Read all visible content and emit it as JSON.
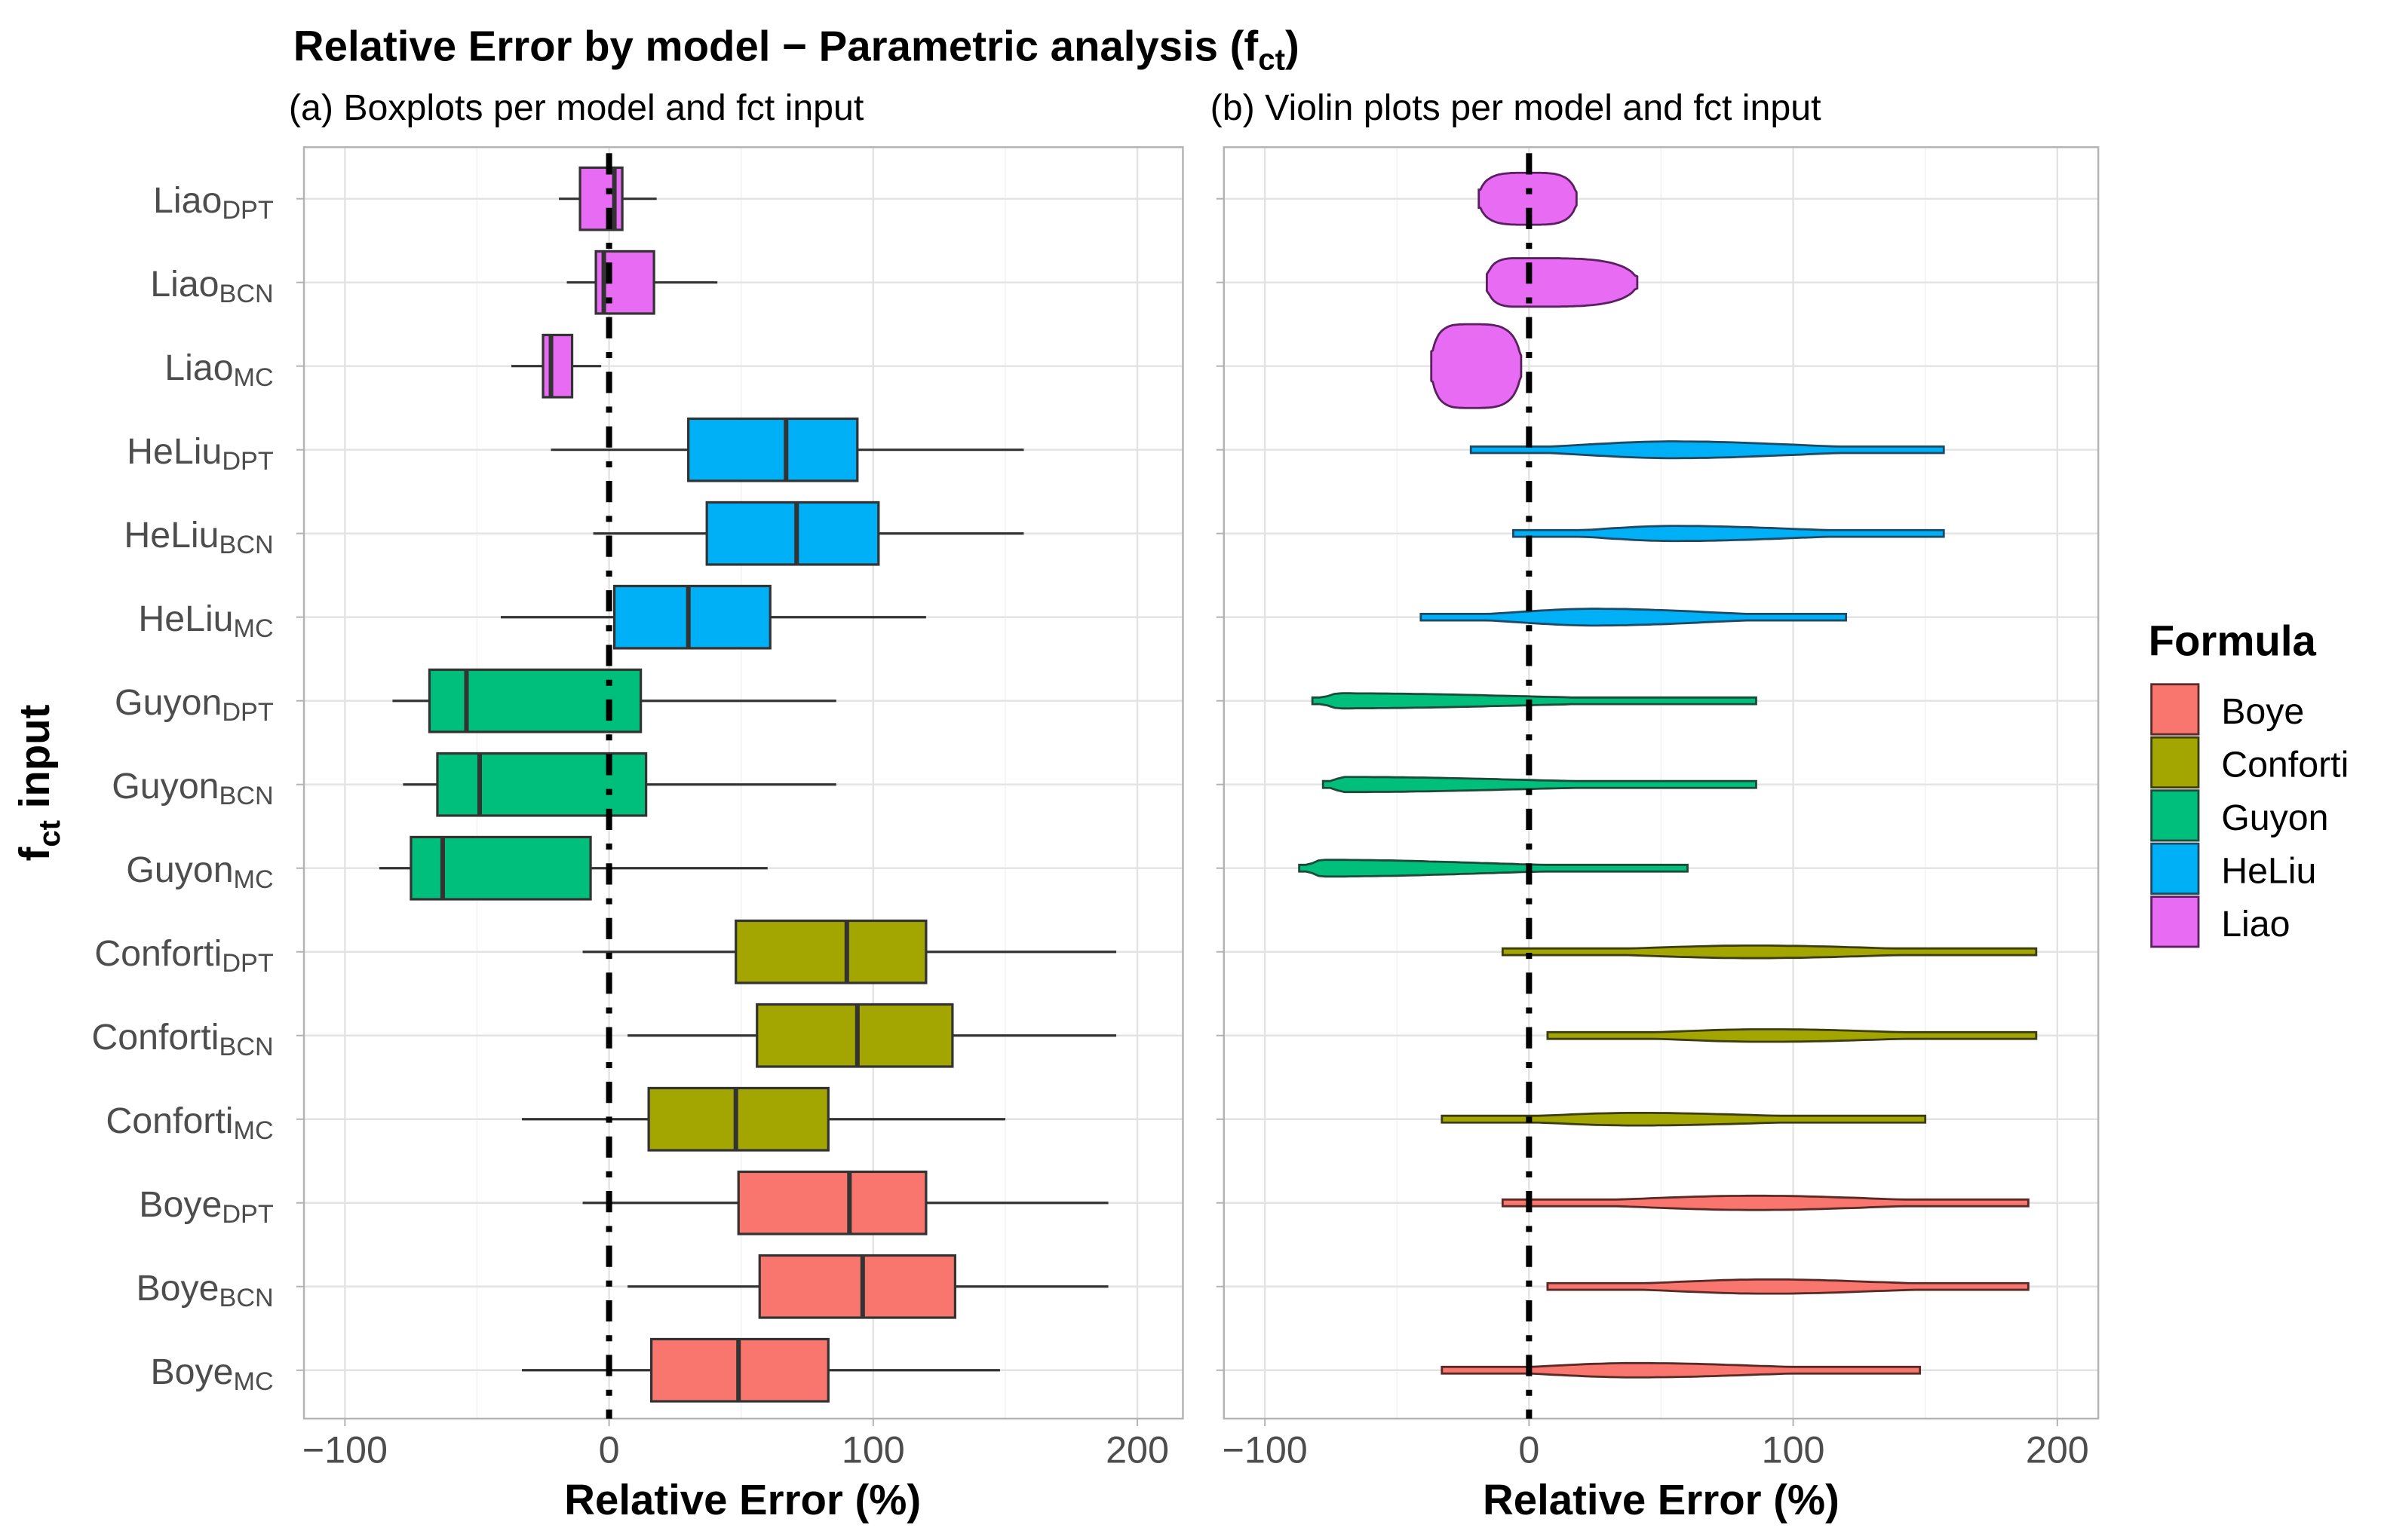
{
  "chart_data": {
    "type": "boxplot+violin",
    "title": "Relative Error by model − Parametric analysis (f",
    "title_sub": "ct",
    "title_end": ")",
    "ylabel": "f",
    "ylabel_sub": "ct",
    "ylabel_end": " input",
    "xlim": [
      -115,
      215
    ],
    "x_ticks": [
      -100,
      0,
      100,
      200
    ],
    "x_tick_labels": [
      "−100",
      "0",
      "100",
      "200"
    ],
    "reference_line": 0,
    "grid": true,
    "legend": {
      "title": "Formula",
      "placement": "right",
      "entries": [
        {
          "label": "Boye",
          "color": "#F8766D"
        },
        {
          "label": "Conforti",
          "color": "#A3A500"
        },
        {
          "label": "Guyon",
          "color": "#00BF7D"
        },
        {
          "label": "HeLiu",
          "color": "#00B0F6"
        },
        {
          "label": "Liao",
          "color": "#E76BF3"
        }
      ]
    },
    "panels": [
      {
        "subtitle": "(a) Boxplots per model and fct input",
        "type": "boxplot",
        "xlabel": "Relative Error (%)"
      },
      {
        "subtitle": "(b) Violin plots per model and fct input",
        "type": "violin",
        "xlabel": "Relative Error (%)"
      }
    ],
    "categories": [
      {
        "base": "Liao",
        "sub": "DPT",
        "formula": "Liao",
        "whisker_low": -19,
        "q1": -11,
        "median": 2,
        "q3": 5,
        "whisker_high": 18,
        "mode": 0,
        "density_width": 0.62
      },
      {
        "base": "Liao",
        "sub": "BCN",
        "formula": "Liao",
        "whisker_low": -16,
        "q1": -5,
        "median": -2,
        "q3": 17,
        "whisker_high": 41,
        "mode": -2,
        "density_width": 0.58
      },
      {
        "base": "Liao",
        "sub": "MC",
        "formula": "Liao",
        "whisker_low": -37,
        "q1": -25,
        "median": -22,
        "q3": -14,
        "whisker_high": -3,
        "mode": -22,
        "density_width": 1.0
      },
      {
        "base": "HeLiu",
        "sub": "DPT",
        "formula": "HeLiu",
        "whisker_low": -22,
        "q1": 30,
        "median": 67,
        "q3": 94,
        "whisker_high": 157,
        "mode": 55,
        "density_width": 0.2
      },
      {
        "base": "HeLiu",
        "sub": "BCN",
        "formula": "HeLiu",
        "whisker_low": -6,
        "q1": 37,
        "median": 71,
        "q3": 102,
        "whisker_high": 157,
        "mode": 55,
        "density_width": 0.18
      },
      {
        "base": "HeLiu",
        "sub": "MC",
        "formula": "HeLiu",
        "whisker_low": -41,
        "q1": 2,
        "median": 30,
        "q3": 61,
        "whisker_high": 120,
        "mode": 25,
        "density_width": 0.2
      },
      {
        "base": "Guyon",
        "sub": "DPT",
        "formula": "Guyon",
        "whisker_low": -82,
        "q1": -68,
        "median": -54,
        "q3": 12,
        "whisker_high": 86,
        "mode": -72,
        "density_width": 0.18
      },
      {
        "base": "Guyon",
        "sub": "BCN",
        "formula": "Guyon",
        "whisker_low": -78,
        "q1": -65,
        "median": -49,
        "q3": 14,
        "whisker_high": 86,
        "mode": -70,
        "density_width": 0.18
      },
      {
        "base": "Guyon",
        "sub": "MC",
        "formula": "Guyon",
        "whisker_low": -87,
        "q1": -75,
        "median": -63,
        "q3": -7,
        "whisker_high": 60,
        "mode": -78,
        "density_width": 0.2
      },
      {
        "base": "Conforti",
        "sub": "DPT",
        "formula": "Conforti",
        "whisker_low": -10,
        "q1": 48,
        "median": 90,
        "q3": 120,
        "whisker_high": 192,
        "mode": 85,
        "density_width": 0.15
      },
      {
        "base": "Conforti",
        "sub": "BCN",
        "formula": "Conforti",
        "whisker_low": 7,
        "q1": 56,
        "median": 94,
        "q3": 130,
        "whisker_high": 192,
        "mode": 90,
        "density_width": 0.15
      },
      {
        "base": "Conforti",
        "sub": "MC",
        "formula": "Conforti",
        "whisker_low": -33,
        "q1": 15,
        "median": 48,
        "q3": 83,
        "whisker_high": 150,
        "mode": 40,
        "density_width": 0.15
      },
      {
        "base": "Boye",
        "sub": "DPT",
        "formula": "Boye",
        "whisker_low": -10,
        "q1": 49,
        "median": 91,
        "q3": 120,
        "whisker_high": 189,
        "mode": 85,
        "density_width": 0.17
      },
      {
        "base": "Boye",
        "sub": "BCN",
        "formula": "Boye",
        "whisker_low": 7,
        "q1": 57,
        "median": 96,
        "q3": 131,
        "whisker_high": 189,
        "mode": 90,
        "density_width": 0.17
      },
      {
        "base": "Boye",
        "sub": "MC",
        "formula": "Boye",
        "whisker_low": -33,
        "q1": 16,
        "median": 49,
        "q3": 83,
        "whisker_high": 148,
        "mode": 40,
        "density_width": 0.17
      }
    ]
  }
}
